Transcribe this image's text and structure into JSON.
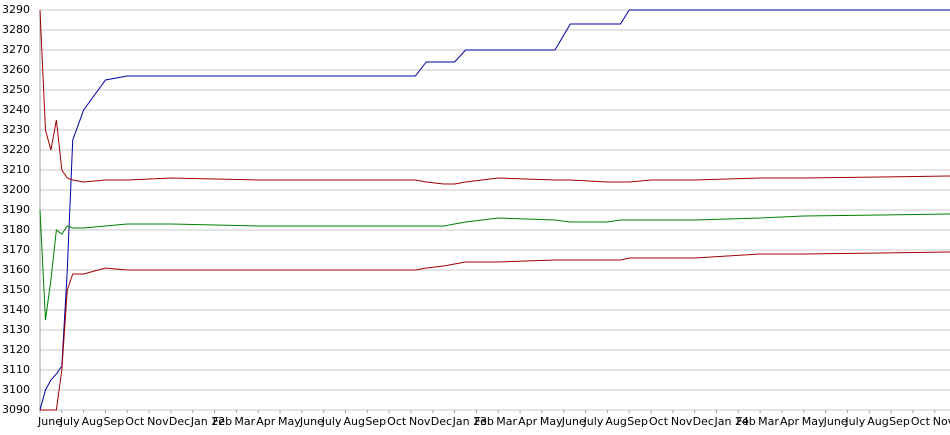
{
  "chart_data": {
    "type": "line",
    "x": [
      0,
      0.25,
      0.5,
      0.75,
      1,
      1.25,
      1.5,
      2,
      3,
      4,
      6,
      10,
      14,
      17.2,
      17.7,
      18.5,
      19,
      19.5,
      21,
      23.6,
      24.3,
      26,
      26.6,
      27,
      28,
      30,
      33,
      35,
      41.7
    ],
    "series": [
      {
        "color": "#0000a0",
        "values": [
          3090,
          3100,
          3105,
          3108,
          3112,
          3160,
          3225,
          3240,
          3255,
          3257,
          3257,
          3257,
          3257,
          3257,
          3264,
          3264,
          3264,
          3270,
          3270,
          3270,
          3283,
          3283,
          3283,
          3290,
          3290,
          3290,
          3290,
          3290,
          3290
        ]
      },
      {
        "color": "#a00000",
        "values": [
          3290,
          3230,
          3220,
          3235,
          3210,
          3206,
          3205,
          3204,
          3205,
          3205,
          3206,
          3205,
          3205,
          3205,
          3204,
          3203,
          3203,
          3204,
          3206,
          3205,
          3205,
          3204,
          3204,
          3204,
          3205,
          3205,
          3206,
          3206,
          3207
        ]
      },
      {
        "color": "#008000",
        "values": [
          3190,
          3135,
          3155,
          3180,
          3178,
          3182,
          3181,
          3181,
          3182,
          3183,
          3183,
          3182,
          3182,
          3182,
          3182,
          3182,
          3183,
          3184,
          3186,
          3185,
          3184,
          3184,
          3185,
          3185,
          3185,
          3185,
          3186,
          3187,
          3188
        ]
      },
      {
        "color": "#a00000",
        "values": [
          3090,
          3090,
          3090,
          3090,
          3110,
          3150,
          3158,
          3158,
          3161,
          3160,
          3160,
          3160,
          3160,
          3160,
          3161,
          3162,
          3163,
          3164,
          3164,
          3165,
          3165,
          3165,
          3165,
          3166,
          3166,
          3166,
          3168,
          3168,
          3169
        ]
      }
    ],
    "xlim": [
      0,
      41.7
    ],
    "xticks": [
      {
        "value": 0,
        "label": "June"
      },
      {
        "value": 1,
        "label": "July"
      },
      {
        "value": 2,
        "label": "Aug"
      },
      {
        "value": 3,
        "label": "Sep"
      },
      {
        "value": 4,
        "label": "Oct"
      },
      {
        "value": 5,
        "label": "Nov"
      },
      {
        "value": 6,
        "label": "Dec"
      },
      {
        "value": 7,
        "label": "Jan 22"
      },
      {
        "value": 8,
        "label": "Feb"
      },
      {
        "value": 9,
        "label": "Mar"
      },
      {
        "value": 10,
        "label": "Apr"
      },
      {
        "value": 11,
        "label": "May"
      },
      {
        "value": 12,
        "label": "June"
      },
      {
        "value": 13,
        "label": "July"
      },
      {
        "value": 14,
        "label": "Aug"
      },
      {
        "value": 15,
        "label": "Sep"
      },
      {
        "value": 16,
        "label": "Oct"
      },
      {
        "value": 17,
        "label": "Nov"
      },
      {
        "value": 18,
        "label": "Dec"
      },
      {
        "value": 19,
        "label": "Jan 23"
      },
      {
        "value": 20,
        "label": "Feb"
      },
      {
        "value": 21,
        "label": "Mar"
      },
      {
        "value": 22,
        "label": "Apr"
      },
      {
        "value": 23,
        "label": "May"
      },
      {
        "value": 24,
        "label": "June"
      },
      {
        "value": 25,
        "label": "July"
      },
      {
        "value": 26,
        "label": "Aug"
      },
      {
        "value": 27,
        "label": "Sep"
      },
      {
        "value": 28,
        "label": "Oct"
      },
      {
        "value": 29,
        "label": "Nov"
      },
      {
        "value": 30,
        "label": "Dec"
      },
      {
        "value": 31,
        "label": "Jan 24"
      },
      {
        "value": 32,
        "label": "Feb"
      },
      {
        "value": 33,
        "label": "Mar"
      },
      {
        "value": 34,
        "label": "Apr"
      },
      {
        "value": 35,
        "label": "May"
      },
      {
        "value": 36,
        "label": "June"
      },
      {
        "value": 37,
        "label": "July"
      },
      {
        "value": 38,
        "label": "Aug"
      },
      {
        "value": 39,
        "label": "Sep"
      },
      {
        "value": 40,
        "label": "Oct"
      },
      {
        "value": 41,
        "label": "Nov"
      }
    ],
    "ylim": [
      3090,
      3290
    ],
    "yticks": [
      3090,
      3100,
      3110,
      3120,
      3130,
      3140,
      3150,
      3160,
      3170,
      3180,
      3190,
      3200,
      3210,
      3220,
      3230,
      3240,
      3250,
      3260,
      3270,
      3280,
      3290
    ],
    "grid": true
  }
}
